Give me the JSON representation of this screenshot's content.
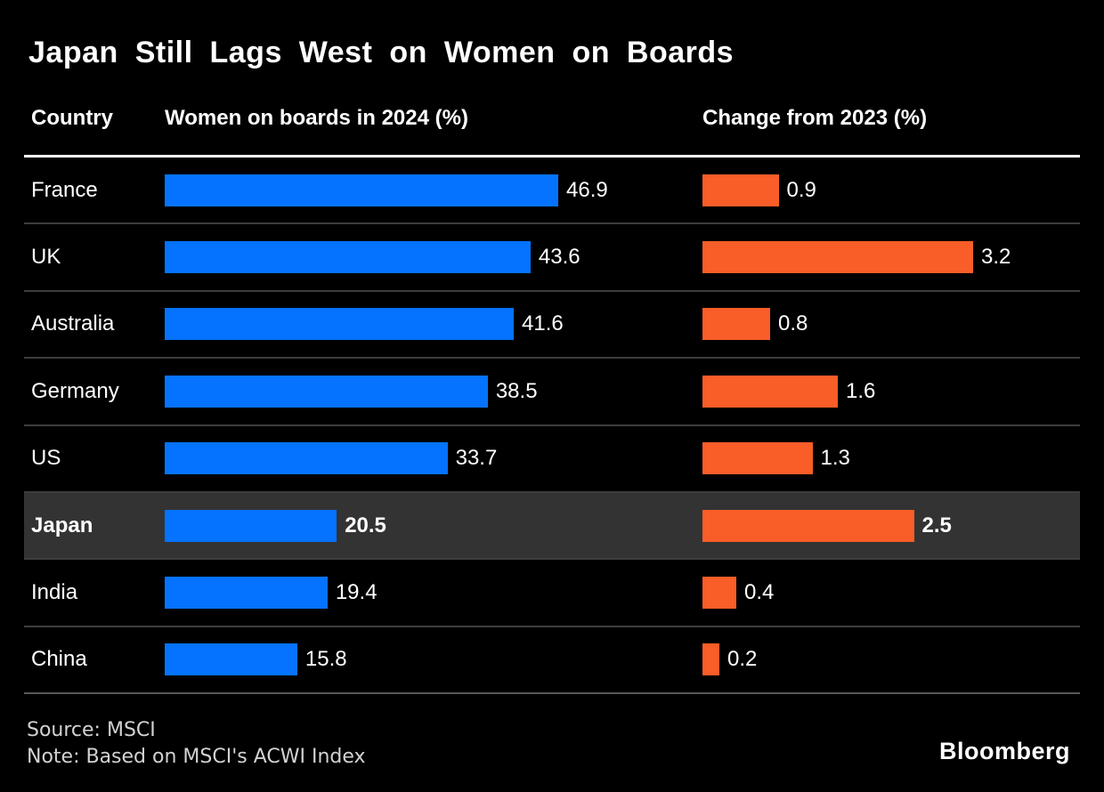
{
  "title": "Japan Still Lags West on Women on Boards",
  "columns": {
    "country": "Country",
    "women": "Women on boards in 2024 (%)",
    "change": "Change from 2023 (%)"
  },
  "chart_data": {
    "type": "bar",
    "orientation": "horizontal",
    "categories": [
      "France",
      "UK",
      "Australia",
      "Germany",
      "US",
      "Japan",
      "India",
      "China"
    ],
    "series": [
      {
        "name": "Women on boards in 2024 (%)",
        "color": "#0573ff",
        "values": [
          46.9,
          43.6,
          41.6,
          38.5,
          33.7,
          20.5,
          19.4,
          15.8
        ]
      },
      {
        "name": "Change from 2023 (%)",
        "color": "#f95d28",
        "values": [
          0.9,
          3.2,
          0.8,
          1.6,
          1.3,
          2.5,
          0.4,
          0.2
        ]
      }
    ],
    "highlight_category": "Japan",
    "value_labels": "end-of-bar, one decimal",
    "xlim_women": [
      0,
      46.9
    ],
    "xlim_change": [
      0,
      3.2
    ],
    "grid": false,
    "legend": "none (column headers act as series labels)"
  },
  "colors": {
    "background": "#000000",
    "bar_women": "#0573ff",
    "bar_change": "#f95d28",
    "highlight_row_bg": "#333333",
    "row_separator": "#3d3d3d",
    "bottom_rule": "#575757",
    "header_rule": "#ffffff",
    "footer_text": "#d2d2d2"
  },
  "footer": {
    "source": "Source: MSCI",
    "note": "Note: Based on MSCI's ACWI Index",
    "brand": "Bloomberg"
  }
}
